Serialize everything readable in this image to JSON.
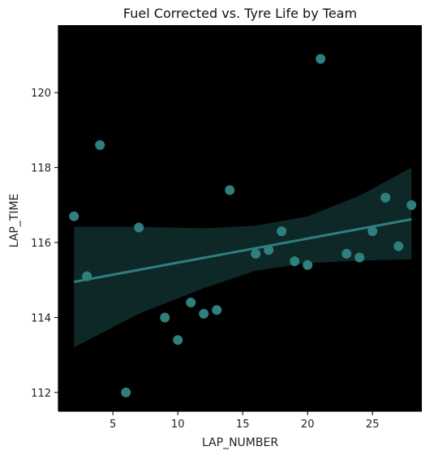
{
  "chart_data": {
    "type": "scatter",
    "title": "Fuel Corrected vs. Tyre Life by Team",
    "xlabel": "LAP_NUMBER",
    "ylabel": "LAP_TIME",
    "xlim": [
      0.8,
      28.8
    ],
    "ylim": [
      111.5,
      121.8
    ],
    "xticks": [
      5,
      10,
      15,
      20,
      25
    ],
    "yticks": [
      112,
      114,
      116,
      118,
      120
    ],
    "grid": false,
    "background_color": "#000000",
    "point_color": "#2f7f7f",
    "line_color": "#2f7f7f",
    "band_color": "#0f2929",
    "points": [
      {
        "x": 2,
        "y": 116.7
      },
      {
        "x": 3,
        "y": 115.1
      },
      {
        "x": 4,
        "y": 118.6
      },
      {
        "x": 6,
        "y": 112.0
      },
      {
        "x": 7,
        "y": 116.4
      },
      {
        "x": 9,
        "y": 114.0
      },
      {
        "x": 10,
        "y": 113.4
      },
      {
        "x": 11,
        "y": 114.4
      },
      {
        "x": 12,
        "y": 114.1
      },
      {
        "x": 13,
        "y": 114.2
      },
      {
        "x": 14,
        "y": 117.4
      },
      {
        "x": 16,
        "y": 115.7
      },
      {
        "x": 17,
        "y": 115.8
      },
      {
        "x": 18,
        "y": 116.3
      },
      {
        "x": 19,
        "y": 115.5
      },
      {
        "x": 20,
        "y": 115.4
      },
      {
        "x": 21,
        "y": 120.9
      },
      {
        "x": 23,
        "y": 115.7
      },
      {
        "x": 24,
        "y": 115.6
      },
      {
        "x": 25,
        "y": 116.3
      },
      {
        "x": 26,
        "y": 117.2
      },
      {
        "x": 27,
        "y": 115.9
      },
      {
        "x": 28,
        "y": 117.0
      }
    ],
    "regression": {
      "x": [
        2,
        28
      ],
      "y": [
        114.95,
        116.62
      ]
    },
    "confidence_band": {
      "x": [
        2,
        7,
        12,
        16,
        20,
        24,
        28
      ],
      "upper": [
        116.42,
        116.42,
        116.38,
        116.45,
        116.7,
        117.25,
        118.0
      ],
      "lower": [
        113.2,
        114.1,
        114.78,
        115.25,
        115.45,
        115.52,
        115.55
      ]
    }
  }
}
